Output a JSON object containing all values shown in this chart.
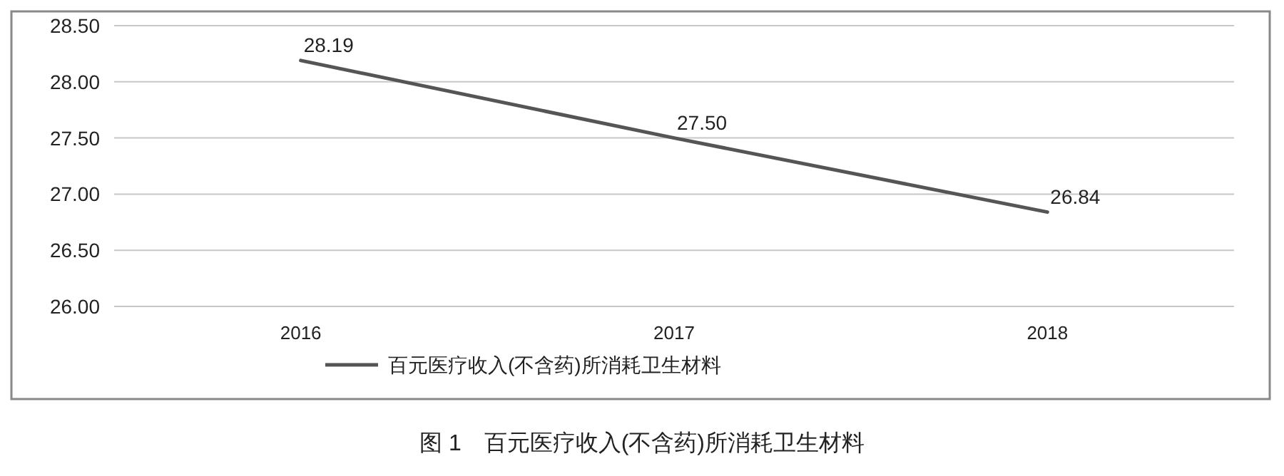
{
  "chart_data": {
    "type": "line",
    "annotations": [
      "图 1　百元医疗收入(不含药)所消耗卫生材料"
    ],
    "categories": [
      "2016",
      "2017",
      "2018"
    ],
    "series": [
      {
        "name": "百元医疗收入(不含药)所消耗卫生材料",
        "color": "#555555",
        "values": [
          28.19,
          27.5,
          26.84
        ]
      }
    ],
    "ylim": [
      26,
      28.5
    ],
    "yticks": [
      {
        "value": 26,
        "label": "26.00"
      },
      {
        "value": 26.5,
        "label": "26.50"
      },
      {
        "value": 27,
        "label": "27.00"
      },
      {
        "value": 27.5,
        "label": "27.50"
      },
      {
        "value": 28,
        "label": "28.00"
      },
      {
        "value": 28.5,
        "label": "28.50"
      }
    ],
    "grid": "y",
    "legend": "bottom",
    "value_labels": [
      "28.19",
      "27.50",
      "26.84"
    ]
  }
}
